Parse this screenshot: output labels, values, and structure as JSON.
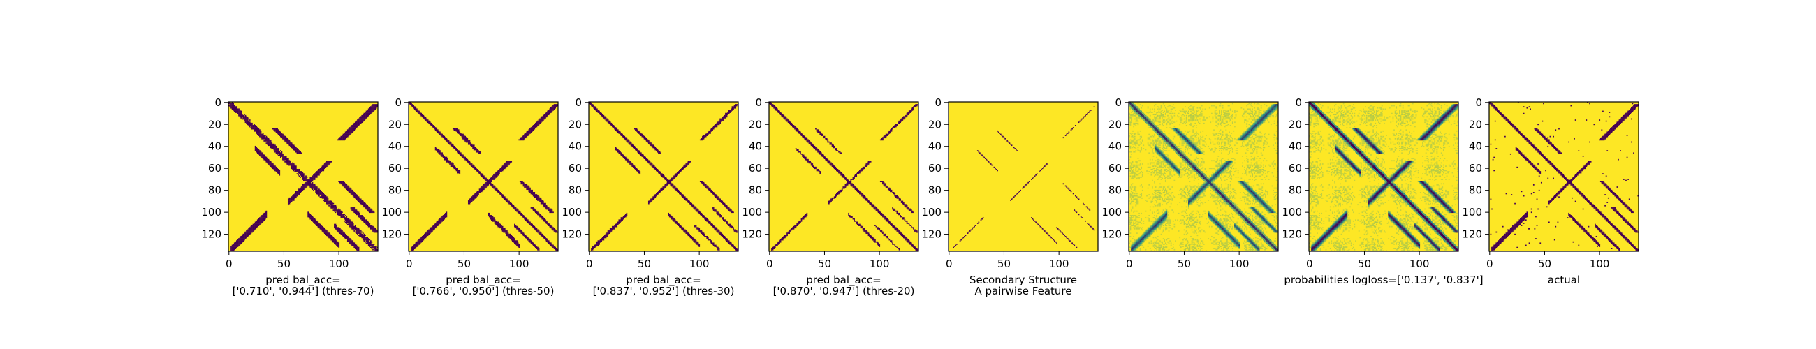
{
  "chart_data": {
    "type": "heatmap",
    "matrix_size": 136,
    "x_ticks": [
      0,
      50,
      100
    ],
    "y_ticks": [
      0,
      20,
      40,
      60,
      80,
      100,
      120
    ],
    "colormap": {
      "low": "#440154",
      "mid": "#21918c",
      "high": "#fde725"
    },
    "panels": [
      {
        "caption_lines": [
          "pred bal_acc=",
          "['0.710', '0.944'] (thres-70)"
        ],
        "mode": "binary",
        "threshold": 0.7
      },
      {
        "caption_lines": [
          "pred bal_acc=",
          "['0.766', '0.950'] (thres-50)"
        ],
        "mode": "binary",
        "threshold": 0.5
      },
      {
        "caption_lines": [
          "pred bal_acc=",
          "['0.837', '0.952'] (thres-30)"
        ],
        "mode": "binary",
        "threshold": 0.3
      },
      {
        "caption_lines": [
          "pred bal_acc=",
          "['0.870', '0.947'] (thres-20)"
        ],
        "mode": "binary",
        "threshold": 0.2
      },
      {
        "caption_lines": [
          "Secondary Structure",
          "A pairwise Feature"
        ],
        "mode": "secondary"
      },
      {
        "caption_lines": [
          "",
          ""
        ],
        "mode": "continuous",
        "strength": 0.75
      },
      {
        "caption_lines": [
          "probabilities logloss=['0.137', '0.837']",
          ""
        ],
        "mode": "continuous",
        "strength": 1.0
      },
      {
        "caption_lines": [
          "actual",
          ""
        ],
        "mode": "actual"
      }
    ]
  }
}
